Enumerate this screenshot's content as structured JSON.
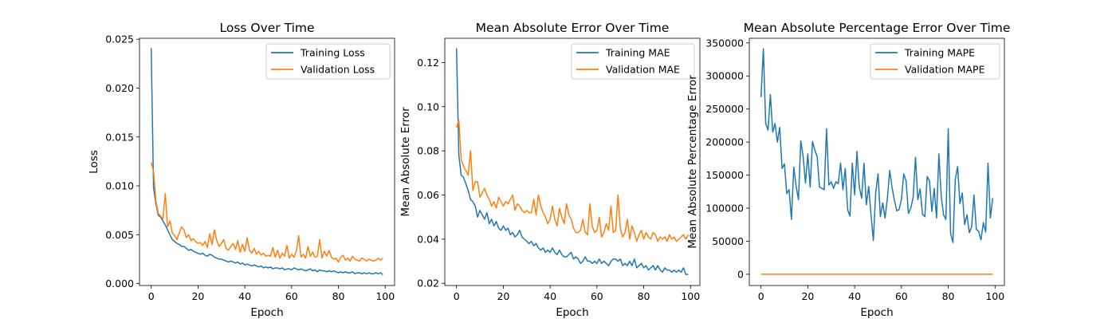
{
  "chart_data": [
    {
      "type": "line",
      "title": "Loss Over Time",
      "xlabel": "Epoch",
      "ylabel": "Loss",
      "xlim": [
        -5,
        104
      ],
      "ylim": [
        -0.0002,
        0.0251
      ],
      "xticks": [
        0,
        20,
        40,
        60,
        80,
        100
      ],
      "xtick_labels": [
        "0",
        "20",
        "40",
        "60",
        "80",
        "100"
      ],
      "yticks": [
        0.0,
        0.005,
        0.01,
        0.015,
        0.02,
        0.025
      ],
      "ytick_labels": [
        "0.000",
        "0.005",
        "0.010",
        "0.015",
        "0.020",
        "0.025"
      ],
      "legend": "upper-right",
      "grid": false,
      "series": [
        {
          "name": "Training Loss",
          "color": "#1f77b4",
          "values": [
            0.0241,
            0.0098,
            0.0082,
            0.007,
            0.0068,
            0.0064,
            0.006,
            0.0055,
            0.005,
            0.0045,
            0.0043,
            0.0041,
            0.004,
            0.0038,
            0.0038,
            0.0036,
            0.0034,
            0.0035,
            0.0033,
            0.0032,
            0.0031,
            0.003,
            0.0031,
            0.0029,
            0.0028,
            0.003,
            0.0029,
            0.0027,
            0.0026,
            0.0025,
            0.0025,
            0.0024,
            0.0023,
            0.0022,
            0.0023,
            0.0022,
            0.0021,
            0.0022,
            0.002,
            0.0021,
            0.0019,
            0.002,
            0.0019,
            0.0018,
            0.0019,
            0.0018,
            0.0017,
            0.0018,
            0.0016,
            0.0017,
            0.0016,
            0.0017,
            0.0015,
            0.0016,
            0.0016,
            0.0015,
            0.0016,
            0.0014,
            0.0015,
            0.0015,
            0.0014,
            0.0016,
            0.0015,
            0.0014,
            0.0015,
            0.0014,
            0.0013,
            0.0014,
            0.0015,
            0.0013,
            0.0014,
            0.0012,
            0.0014,
            0.0013,
            0.0013,
            0.0012,
            0.0013,
            0.0012,
            0.0013,
            0.0012,
            0.0011,
            0.0012,
            0.0011,
            0.0012,
            0.0011,
            0.0011,
            0.0012,
            0.001,
            0.0011,
            0.0011,
            0.001,
            0.0011,
            0.001,
            0.0011,
            0.001,
            0.001,
            0.0011,
            0.001,
            0.0011,
            0.0009
          ]
        },
        {
          "name": "Validation Loss",
          "color": "#ff7f0e",
          "values": [
            0.0124,
            0.0115,
            0.0085,
            0.0072,
            0.0069,
            0.0066,
            0.0092,
            0.0058,
            0.0064,
            0.0052,
            0.0049,
            0.0045,
            0.0052,
            0.0058,
            0.0055,
            0.0047,
            0.005,
            0.0044,
            0.0046,
            0.0043,
            0.0041,
            0.0042,
            0.0039,
            0.0043,
            0.0037,
            0.0051,
            0.004,
            0.0055,
            0.0044,
            0.0038,
            0.0041,
            0.0045,
            0.0036,
            0.0034,
            0.0038,
            0.0041,
            0.0035,
            0.0044,
            0.0032,
            0.004,
            0.0033,
            0.0047,
            0.0034,
            0.0031,
            0.0036,
            0.003,
            0.0033,
            0.0029,
            0.0031,
            0.0028,
            0.0029,
            0.0028,
            0.0037,
            0.0027,
            0.0034,
            0.0026,
            0.0031,
            0.0028,
            0.0039,
            0.0026,
            0.003,
            0.0027,
            0.0033,
            0.0049,
            0.0027,
            0.003,
            0.0026,
            0.0038,
            0.0028,
            0.0032,
            0.0027,
            0.0028,
            0.0045,
            0.0026,
            0.0033,
            0.0028,
            0.0034,
            0.0027,
            0.0025,
            0.0026,
            0.0022,
            0.0027,
            0.0029,
            0.0024,
            0.0026,
            0.0023,
            0.0028,
            0.0025,
            0.0024,
            0.0023,
            0.0026,
            0.0025,
            0.0023,
            0.0025,
            0.0024,
            0.0023,
            0.0024,
            0.0026,
            0.0024,
            0.0026
          ]
        }
      ]
    },
    {
      "type": "line",
      "title": "Mean Absolute Error Over Time",
      "xlabel": "Epoch",
      "ylabel": "Mean Absolute Error",
      "xlim": [
        -5,
        104
      ],
      "ylim": [
        0.019,
        0.131
      ],
      "xticks": [
        0,
        20,
        40,
        60,
        80,
        100
      ],
      "xtick_labels": [
        "0",
        "20",
        "40",
        "60",
        "80",
        "100"
      ],
      "yticks": [
        0.02,
        0.04,
        0.06,
        0.08,
        0.1,
        0.12
      ],
      "ytick_labels": [
        "0.02",
        "0.04",
        "0.06",
        "0.08",
        "0.10",
        "0.12"
      ],
      "legend": "upper-right",
      "grid": false,
      "series": [
        {
          "name": "Training MAE",
          "color": "#1f77b4",
          "values": [
            0.1265,
            0.078,
            0.069,
            0.068,
            0.065,
            0.062,
            0.058,
            0.057,
            0.055,
            0.05,
            0.053,
            0.051,
            0.049,
            0.052,
            0.047,
            0.049,
            0.046,
            0.048,
            0.045,
            0.044,
            0.046,
            0.044,
            0.045,
            0.042,
            0.043,
            0.041,
            0.042,
            0.044,
            0.041,
            0.04,
            0.039,
            0.038,
            0.039,
            0.037,
            0.038,
            0.036,
            0.035,
            0.036,
            0.034,
            0.035,
            0.034,
            0.036,
            0.034,
            0.033,
            0.035,
            0.033,
            0.032,
            0.032,
            0.033,
            0.034,
            0.031,
            0.032,
            0.031,
            0.029,
            0.03,
            0.032,
            0.03,
            0.03,
            0.029,
            0.03,
            0.029,
            0.031,
            0.029,
            0.03,
            0.029,
            0.028,
            0.03,
            0.031,
            0.031,
            0.03,
            0.031,
            0.028,
            0.029,
            0.028,
            0.03,
            0.028,
            0.031,
            0.027,
            0.028,
            0.029,
            0.027,
            0.028,
            0.026,
            0.027,
            0.028,
            0.026,
            0.028,
            0.026,
            0.025,
            0.027,
            0.026,
            0.026,
            0.025,
            0.026,
            0.025,
            0.026,
            0.025,
            0.027,
            0.024,
            0.024
          ]
        },
        {
          "name": "Validation MAE",
          "color": "#ff7f0e",
          "values": [
            0.0905,
            0.094,
            0.076,
            0.073,
            0.071,
            0.069,
            0.08,
            0.062,
            0.066,
            0.066,
            0.059,
            0.061,
            0.063,
            0.06,
            0.058,
            0.055,
            0.057,
            0.054,
            0.059,
            0.057,
            0.055,
            0.057,
            0.056,
            0.058,
            0.06,
            0.053,
            0.056,
            0.055,
            0.053,
            0.052,
            0.053,
            0.052,
            0.052,
            0.058,
            0.051,
            0.06,
            0.055,
            0.052,
            0.05,
            0.047,
            0.049,
            0.055,
            0.049,
            0.046,
            0.054,
            0.05,
            0.047,
            0.056,
            0.051,
            0.049,
            0.045,
            0.043,
            0.043,
            0.044,
            0.049,
            0.043,
            0.042,
            0.056,
            0.046,
            0.043,
            0.044,
            0.05,
            0.041,
            0.043,
            0.047,
            0.044,
            0.055,
            0.043,
            0.044,
            0.06,
            0.045,
            0.041,
            0.043,
            0.049,
            0.04,
            0.046,
            0.043,
            0.039,
            0.042,
            0.044,
            0.04,
            0.043,
            0.041,
            0.04,
            0.043,
            0.042,
            0.039,
            0.041,
            0.04,
            0.041,
            0.039,
            0.042,
            0.04,
            0.041,
            0.039,
            0.04,
            0.041,
            0.042,
            0.04,
            0.042
          ]
        }
      ]
    },
    {
      "type": "line",
      "title": "Mean Absolute Percentage Error Over Time",
      "xlabel": "Epoch",
      "ylabel": "Mean Absolute Percentage Error",
      "xlim": [
        -5,
        104
      ],
      "ylim": [
        -17000,
        357000
      ],
      "xticks": [
        0,
        20,
        40,
        60,
        80,
        100
      ],
      "xtick_labels": [
        "0",
        "20",
        "40",
        "60",
        "80",
        "100"
      ],
      "yticks": [
        0,
        50000,
        100000,
        150000,
        200000,
        250000,
        300000,
        350000
      ],
      "ytick_labels": [
        "0",
        "50000",
        "100000",
        "150000",
        "200000",
        "250000",
        "300000",
        "350000"
      ],
      "legend": "upper-right",
      "grid": false,
      "series": [
        {
          "name": "Training MAPE",
          "color": "#1f77b4",
          "values": [
            268000,
            341000,
            228000,
            218000,
            272000,
            215000,
            228000,
            200000,
            222000,
            160000,
            167000,
            122000,
            128000,
            83000,
            162000,
            133000,
            113000,
            202000,
            178000,
            138000,
            182000,
            132000,
            201000,
            188000,
            178000,
            132000,
            130000,
            128000,
            220000,
            135000,
            140000,
            130000,
            140000,
            137000,
            168000,
            128000,
            160000,
            98000,
            88000,
            168000,
            120000,
            186000,
            132000,
            115000,
            168000,
            105000,
            133000,
            90000,
            51000,
            123000,
            152000,
            87000,
            108000,
            85000,
            115000,
            157000,
            131000,
            112000,
            96000,
            98000,
            113000,
            152000,
            141000,
            92000,
            100000,
            116000,
            177000,
            113000,
            129000,
            91000,
            87000,
            148000,
            141000,
            95000,
            130000,
            85000,
            182000,
            118000,
            90000,
            83000,
            220000,
            62000,
            48000,
            143000,
            163000,
            107000,
            123000,
            75000,
            90000,
            63000,
            72000,
            120000,
            68000,
            65000,
            52000,
            78000,
            64000,
            168000,
            85000,
            115000
          ]
        },
        {
          "name": "Validation MAPE",
          "color": "#ff7f0e",
          "values": [
            0,
            0,
            0,
            0,
            0,
            0,
            0,
            0,
            0,
            0,
            0,
            0,
            0,
            0,
            0,
            0,
            0,
            0,
            0,
            0,
            0,
            0,
            0,
            0,
            0,
            0,
            0,
            0,
            0,
            0,
            0,
            0,
            0,
            0,
            0,
            0,
            0,
            0,
            0,
            0,
            0,
            0,
            0,
            0,
            0,
            0,
            0,
            0,
            0,
            0,
            0,
            0,
            0,
            0,
            0,
            0,
            0,
            0,
            0,
            0,
            0,
            0,
            0,
            0,
            0,
            0,
            0,
            0,
            0,
            0,
            0,
            0,
            0,
            0,
            0,
            0,
            0,
            0,
            0,
            0,
            0,
            0,
            0,
            0,
            0,
            0,
            0,
            0,
            0,
            0,
            0,
            0,
            0,
            0,
            0,
            0,
            0,
            0,
            0,
            0
          ]
        }
      ]
    }
  ]
}
